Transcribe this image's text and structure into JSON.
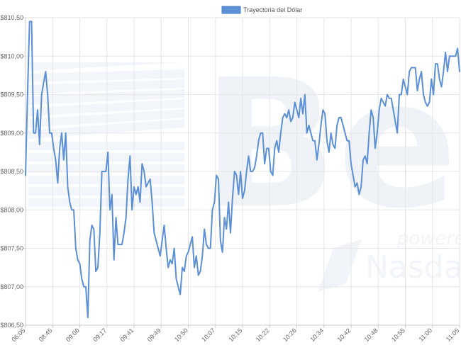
{
  "chart_data": {
    "type": "line",
    "title": "",
    "xlabel": "",
    "ylabel": "",
    "grid": true,
    "legend_position": "top-center",
    "series": [
      {
        "name": "Trayectoria del Dólar",
        "color": "#5b8fd6",
        "values": [
          808.45,
          809.5,
          810.45,
          810.45,
          809.0,
          809.0,
          809.3,
          808.85,
          809.5,
          809.65,
          809.8,
          809.5,
          809.0,
          809.0,
          808.8,
          808.65,
          808.35,
          808.8,
          809.0,
          808.65,
          809.0,
          808.3,
          808.1,
          808.0,
          808.0,
          807.5,
          807.35,
          807.3,
          807.1,
          807.0,
          807.0,
          806.6,
          807.6,
          807.8,
          807.75,
          807.2,
          807.25,
          807.7,
          808.5,
          808.5,
          808.5,
          808.75,
          808.0,
          808.2,
          807.35,
          807.9,
          807.55,
          807.55,
          807.55,
          807.7,
          807.9,
          808.4,
          808.7,
          808.0,
          808.3,
          808.2,
          808.3,
          808.1,
          808.6,
          808.5,
          808.3,
          808.35,
          808.4,
          808.1,
          807.7,
          807.6,
          807.5,
          807.4,
          807.6,
          807.8,
          807.5,
          807.25,
          807.35,
          807.3,
          807.5,
          807.1,
          807.0,
          806.9,
          807.25,
          807.2,
          807.4,
          807.45,
          807.55,
          807.65,
          807.25,
          807.4,
          807.15,
          807.2,
          807.4,
          807.75,
          807.55,
          807.5,
          807.5,
          808.0,
          808.1,
          808.45,
          808.4,
          807.6,
          807.45,
          807.9,
          807.75,
          808.1,
          807.7,
          808.15,
          808.5,
          808.45,
          808.2,
          808.5,
          808.15,
          808.25,
          808.5,
          808.7,
          808.5,
          808.5,
          808.55,
          808.7,
          808.9,
          809.0,
          809.0,
          808.6,
          808.8,
          808.8,
          808.5,
          808.45,
          808.8,
          808.9,
          808.75,
          809.0,
          809.2,
          809.25,
          809.2,
          809.3,
          809.15,
          809.2,
          809.4,
          809.3,
          809.2,
          809.45,
          809.25,
          809.5,
          809.0,
          809.1,
          809.0,
          808.9,
          808.9,
          808.65,
          808.85,
          809.1,
          809.3,
          809.25,
          808.9,
          808.75,
          809.0,
          808.85,
          808.8,
          809.1,
          809.2,
          809.2,
          809.1,
          809.0,
          808.9,
          808.9,
          808.6,
          808.45,
          808.3,
          808.35,
          808.2,
          808.3,
          808.65,
          808.7,
          808.6,
          809.0,
          809.3,
          809.2,
          808.8,
          809.0,
          809.3,
          809.45,
          809.4,
          809.35,
          809.5,
          809.45,
          809.45,
          809.3,
          809.15,
          809.0,
          809.5,
          809.5,
          809.7,
          809.6,
          809.5,
          809.8,
          809.85,
          809.85,
          809.85,
          809.55,
          809.7,
          809.8,
          809.5,
          809.4,
          809.35,
          809.4,
          809.7,
          809.5,
          809.9,
          809.9,
          809.7,
          809.6,
          809.8,
          810.05,
          809.8,
          810.0,
          810.0,
          810.0,
          810.0,
          810.1,
          809.8
        ]
      }
    ],
    "x_tick_labels": [
      "06:05",
      "08:45",
      "09:06",
      "09:17",
      "09:41",
      "09:49",
      "10:50",
      "10:07",
      "10:15",
      "10:22",
      "10:26",
      "10:34",
      "10:42",
      "10:48",
      "10:55",
      "11:00",
      "11:05"
    ],
    "y_tick_labels": [
      "$806,50",
      "$807,00",
      "$807,50",
      "$808,00",
      "$808,50",
      "$809,00",
      "$809,50",
      "$810,00",
      "$810,50"
    ],
    "ylim": [
      806.5,
      810.5
    ],
    "colors": {
      "line": "#5b8fd6",
      "grid": "#e6e6e6",
      "axis": "#cccccc"
    }
  },
  "watermark": {
    "brand": "Bec",
    "powered": "powered",
    "partner": "Nasda"
  }
}
